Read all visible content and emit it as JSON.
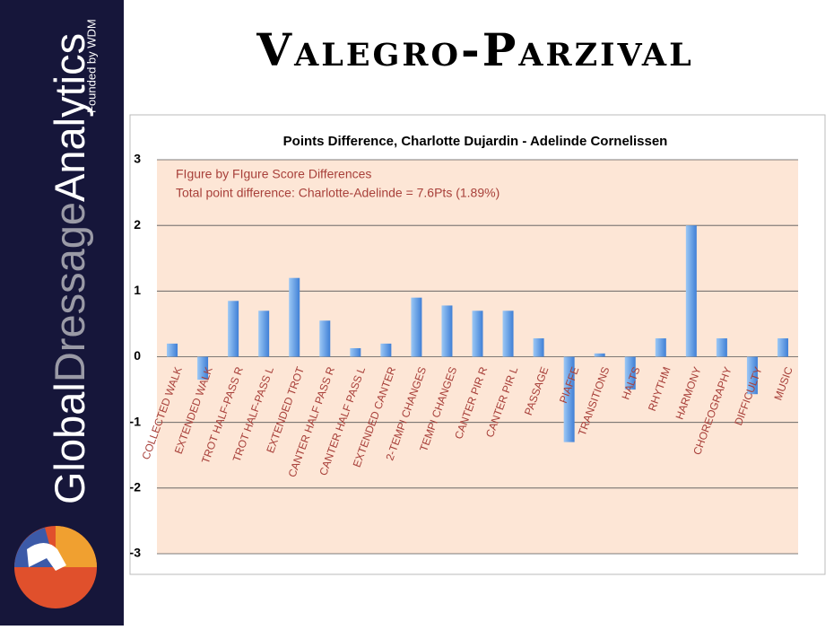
{
  "slide": {
    "title": "Valegro-Parzival",
    "brand": [
      "Global",
      "Dressage",
      "Analytics"
    ],
    "tagline": "Founded by WDM"
  },
  "chart_data": {
    "type": "bar",
    "title": "Points Difference, Charlotte Dujardin - Adelinde Cornelissen",
    "annotations": [
      "FIgure by FIgure Score Differences",
      "Total point difference: Charlotte-Adelinde = 7.6Pts (1.89%)"
    ],
    "categories": [
      "COLLECTED WALK",
      "EXTENDED WALK",
      "TROT HALF-PASS R",
      "TROT HALF-PASS L",
      "EXTENDED TROT",
      "CANTER HALF PASS R",
      "CANTER HALF PASS L",
      "EXTENDED CANTER",
      "2-TEMPI CHANGES",
      "TEMPI CHANGES",
      "CANTER PIR R",
      "CANTER PIR L",
      "PASSAGE",
      "PIAFFE",
      "TRANSITIONS",
      "HALTS",
      "RHYTHM",
      "HARMONY",
      "CHOREOGRAPHY",
      "DIFFICULTY",
      "MUSIC"
    ],
    "values": [
      0.2,
      -0.35,
      0.85,
      0.7,
      1.2,
      0.55,
      0.13,
      0.2,
      0.9,
      0.78,
      0.7,
      0.7,
      0.28,
      -1.3,
      0.05,
      -0.5,
      0.28,
      2,
      0.28,
      -0.57,
      0.28
    ],
    "color": "#5b9be0",
    "ylim": [
      -3,
      3
    ],
    "yticks": [
      -3,
      -2,
      -1,
      0,
      1,
      2,
      3
    ],
    "grid": true
  }
}
